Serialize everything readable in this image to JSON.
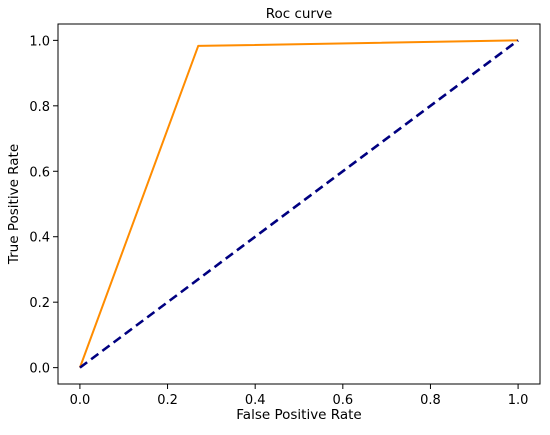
{
  "chart_data": {
    "type": "line",
    "title": "Roc curve",
    "xlabel": "False Positive Rate",
    "ylabel": "True Positive Rate",
    "xlim": [
      -0.05,
      1.05
    ],
    "ylim": [
      -0.05,
      1.05
    ],
    "xticks": [
      "0.0",
      "0.2",
      "0.4",
      "0.6",
      "0.8",
      "1.0"
    ],
    "yticks": [
      "0.0",
      "0.2",
      "0.4",
      "0.6",
      "0.8",
      "1.0"
    ],
    "grid": false,
    "legend": "none",
    "series": [
      {
        "x": [
          0.0,
          0.27,
          1.0
        ],
        "y": [
          0.0,
          0.983,
          1.0
        ],
        "color": "#ff8c00",
        "style": "solid"
      },
      {
        "x": [
          0.0,
          1.0
        ],
        "y": [
          0.0,
          1.0
        ],
        "color": "#000080",
        "style": "dashed"
      }
    ]
  }
}
